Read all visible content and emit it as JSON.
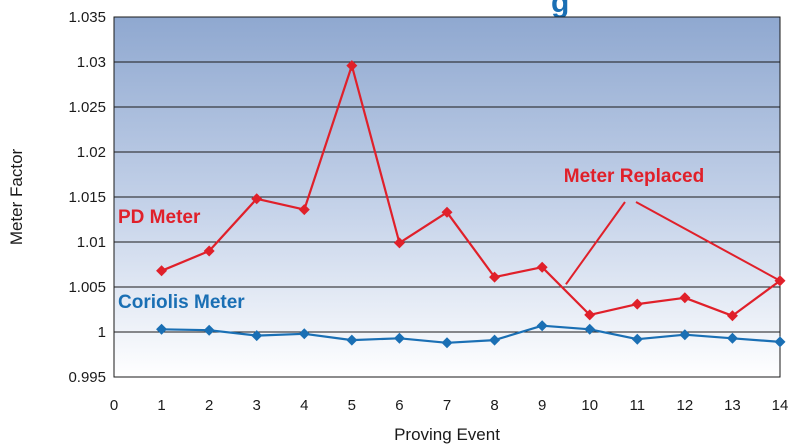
{
  "chart_data": {
    "type": "line",
    "title_fragment": "g",
    "xlabel": "Proving Event",
    "ylabel": "Meter Factor",
    "xlim": [
      0,
      14
    ],
    "ylim": [
      0.995,
      1.035
    ],
    "x_ticks": [
      "0",
      "1",
      "2",
      "3",
      "4",
      "5",
      "6",
      "7",
      "8",
      "9",
      "10",
      "11",
      "12",
      "13",
      "14"
    ],
    "y_ticks": [
      "0.995",
      "1",
      "1.005",
      "1.01",
      "1.015",
      "1.02",
      "1.025",
      "1.03",
      "1.035"
    ],
    "grid": "horizontal",
    "background": "gradient dark blue top to white bottom",
    "series": [
      {
        "name": "PD Meter",
        "color": "#e0202a",
        "marker": "diamond",
        "x": [
          1,
          2,
          3,
          4,
          5,
          6,
          7,
          8,
          9,
          10,
          11,
          12,
          13,
          14
        ],
        "y": [
          1.0068,
          1.009,
          1.0148,
          1.0136,
          1.0296,
          1.0099,
          1.0133,
          1.0061,
          1.0072,
          1.0019,
          1.0031,
          1.0038,
          1.0018,
          1.0057
        ]
      },
      {
        "name": "Coriolis Meter",
        "color": "#1a6fb4",
        "marker": "diamond",
        "x": [
          1,
          2,
          3,
          4,
          5,
          6,
          7,
          8,
          9,
          10,
          11,
          12,
          13,
          14
        ],
        "y": [
          1.0003,
          1.0002,
          0.9996,
          0.9998,
          0.9991,
          0.9993,
          0.9988,
          0.9991,
          1.0007,
          1.0003,
          0.9992,
          0.9997,
          0.9993,
          0.9989
        ]
      }
    ],
    "annotations": [
      {
        "text": "Meter Replaced",
        "color": "#e0202a",
        "arrows_to": [
          [
            9.5,
            1.0053
          ],
          [
            14,
            1.0057
          ]
        ]
      }
    ]
  }
}
